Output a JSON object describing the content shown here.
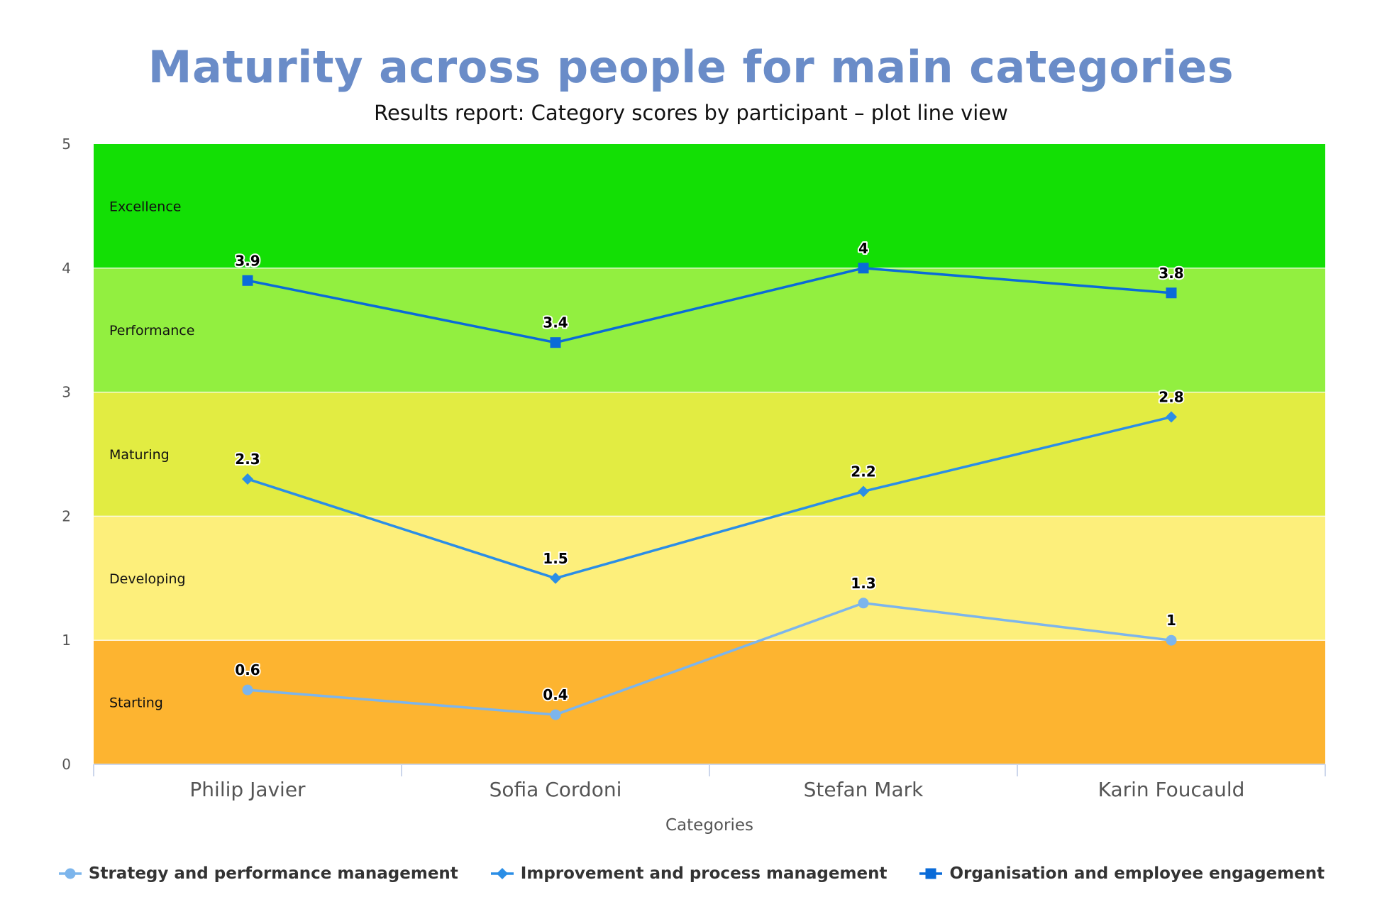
{
  "title": "Maturity across people for main categories",
  "subtitle": "Results report: Category scores by participant – plot line view",
  "chart_data": {
    "type": "line",
    "title": "Maturity across people for main categories",
    "subtitle": "Results report: Category scores by participant – plot line view",
    "xlabel": "Categories",
    "ylabel": "",
    "categories": [
      "Philip Javier",
      "Sofia Cordoni",
      "Stefan Mark",
      "Karin Foucauld"
    ],
    "ylim": [
      0,
      5
    ],
    "yticks": [
      0,
      1,
      2,
      3,
      4,
      5
    ],
    "grid": false,
    "legend_position": "bottom",
    "bands": [
      {
        "label": "Starting",
        "from": 0,
        "to": 1,
        "color": "#fdb430"
      },
      {
        "label": "Developing",
        "from": 1,
        "to": 2,
        "color": "#fdef7b"
      },
      {
        "label": "Maturing",
        "from": 2,
        "to": 3,
        "color": "#e2ec42"
      },
      {
        "label": "Performance",
        "from": 3,
        "to": 4,
        "color": "#92ef40"
      },
      {
        "label": "Excellence",
        "from": 4,
        "to": 5,
        "color": "#13df05"
      }
    ],
    "series": [
      {
        "name": "Strategy and performance management",
        "values": [
          0.6,
          0.4,
          1.3,
          1
        ],
        "color": "#7cb5ec",
        "marker": "circle"
      },
      {
        "name": "Improvement and process management",
        "values": [
          2.3,
          1.5,
          2.2,
          2.8
        ],
        "color": "#2b8ee6",
        "marker": "diamond"
      },
      {
        "name": "Organisation and employee engagement",
        "values": [
          3.9,
          3.4,
          4,
          3.8
        ],
        "color": "#0a6bd8",
        "marker": "square"
      }
    ]
  }
}
